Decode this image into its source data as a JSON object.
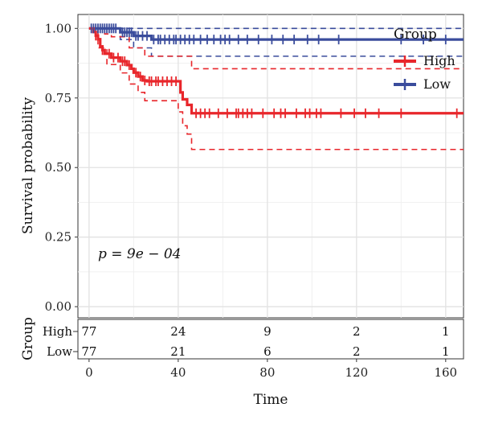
{
  "chart_data": {
    "type": "line",
    "subtype": "kaplan-meier",
    "title": "",
    "xlabel": "Time",
    "ylabel": "Survival probability",
    "xlim": [
      -5,
      168
    ],
    "ylim": [
      -0.04,
      1.05
    ],
    "x_ticks": [
      0,
      40,
      80,
      120,
      160
    ],
    "x_tick_labels": [
      "0",
      "40",
      "80",
      "120",
      "160"
    ],
    "y_ticks": [
      0.0,
      0.25,
      0.5,
      0.75,
      1.0
    ],
    "y_tick_labels": [
      "0.00",
      "0.25",
      "0.50",
      "0.75",
      "1.00"
    ],
    "grid": true,
    "legend": {
      "title": "Group",
      "position": "top-right",
      "entries": [
        {
          "label": "High",
          "color": "#e8262b"
        },
        {
          "label": "Low",
          "color": "#3a4c9c"
        }
      ]
    },
    "annotation": "p = 9e − 04",
    "series": [
      {
        "name": "High",
        "color": "#e8262b",
        "steps": [
          [
            0,
            1.0
          ],
          [
            2,
            0.987
          ],
          [
            3,
            0.974
          ],
          [
            4,
            0.961
          ],
          [
            5,
            0.935
          ],
          [
            6,
            0.922
          ],
          [
            7,
            0.909
          ],
          [
            10,
            0.895
          ],
          [
            14,
            0.882
          ],
          [
            17,
            0.868
          ],
          [
            19,
            0.855
          ],
          [
            20,
            0.841
          ],
          [
            22,
            0.827
          ],
          [
            24,
            0.813
          ],
          [
            26,
            0.81
          ],
          [
            41,
            0.77
          ],
          [
            42,
            0.745
          ],
          [
            44,
            0.725
          ],
          [
            46,
            0.695
          ],
          [
            168,
            0.695
          ]
        ],
        "lower": [
          [
            0,
            1.0
          ],
          [
            4,
            0.93
          ],
          [
            8,
            0.87
          ],
          [
            14,
            0.84
          ],
          [
            18,
            0.8
          ],
          [
            22,
            0.77
          ],
          [
            25,
            0.74
          ],
          [
            40,
            0.7
          ],
          [
            42,
            0.65
          ],
          [
            44,
            0.62
          ],
          [
            46,
            0.565
          ],
          [
            168,
            0.565
          ]
        ],
        "upper": [
          [
            0,
            1.0
          ],
          [
            4,
            1.0
          ],
          [
            7,
            0.98
          ],
          [
            10,
            0.97
          ],
          [
            18,
            0.93
          ],
          [
            25,
            0.9
          ],
          [
            42,
            0.9
          ],
          [
            46,
            0.855
          ],
          [
            168,
            0.855
          ]
        ],
        "censor": [
          3,
          6,
          9,
          11,
          13,
          15,
          16,
          18,
          21,
          23,
          25,
          27,
          28,
          30,
          31,
          33,
          35,
          37,
          39,
          48,
          50,
          52,
          54,
          58,
          62,
          66,
          67,
          69,
          71,
          73,
          78,
          83,
          86,
          88,
          93,
          97,
          99,
          102,
          104,
          113,
          119,
          124,
          130,
          140,
          165
        ]
      },
      {
        "name": "Low",
        "color": "#3a4c9c",
        "steps": [
          [
            0,
            1.0
          ],
          [
            14,
            0.986
          ],
          [
            20,
            0.973
          ],
          [
            28,
            0.96
          ],
          [
            168,
            0.96
          ]
        ],
        "lower": [
          [
            0,
            1.0
          ],
          [
            14,
            0.96
          ],
          [
            20,
            0.93
          ],
          [
            28,
            0.9
          ],
          [
            168,
            0.9
          ]
        ],
        "upper": [
          [
            0,
            1.0
          ],
          [
            168,
            1.0
          ]
        ],
        "censor": [
          1,
          2,
          3,
          4,
          5,
          6,
          7,
          8,
          9,
          10,
          11,
          12,
          15,
          16,
          17,
          18,
          19,
          21,
          22,
          24,
          26,
          29,
          31,
          32,
          34,
          36,
          38,
          39,
          41,
          43,
          45,
          47,
          50,
          53,
          56,
          59,
          61,
          63,
          67,
          71,
          76,
          82,
          87,
          92,
          98,
          103,
          112,
          140,
          150,
          160
        ]
      }
    ],
    "risk_table": {
      "title": "Group",
      "times": [
        0,
        40,
        80,
        120,
        160
      ],
      "rows": [
        {
          "label": "High",
          "values": [
            "77",
            "24",
            "9",
            "2",
            "1"
          ]
        },
        {
          "label": "Low",
          "values": [
            "77",
            "21",
            "6",
            "2",
            "1"
          ]
        }
      ]
    }
  }
}
